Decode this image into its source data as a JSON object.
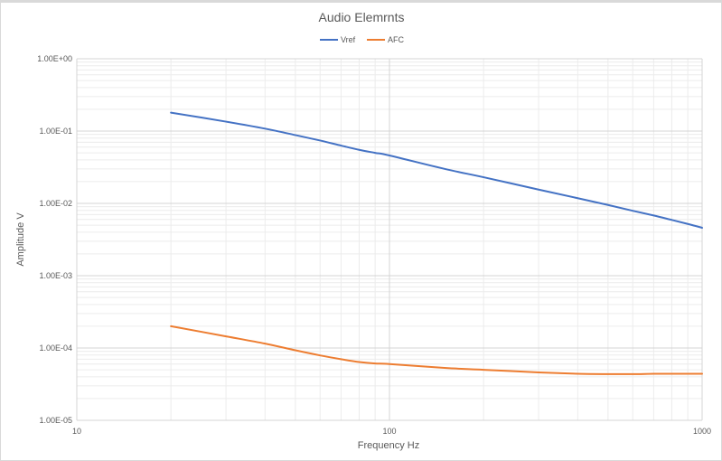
{
  "chart_data": {
    "type": "line",
    "title": "Audio Elemrnts",
    "xlabel": "Frequency Hz",
    "ylabel": "Amplitude V",
    "x_scale": "log",
    "y_scale": "log",
    "xlim": [
      10,
      1000
    ],
    "ylim": [
      1e-05,
      1
    ],
    "x_ticks": [
      10,
      100,
      1000
    ],
    "x_tick_labels": [
      "10",
      "100",
      "1000"
    ],
    "y_ticks": [
      1,
      0.1,
      0.01,
      0.001,
      0.0001,
      1e-05
    ],
    "y_tick_labels": [
      "1.00E+00",
      "1.00E-01",
      "1.00E-02",
      "1.00E-03",
      "1.00E-04",
      "1.00E-05"
    ],
    "grid": true,
    "legend_position": "top",
    "series": [
      {
        "name": "Vref",
        "color": "#4472c4",
        "x": [
          20,
          30,
          40,
          50,
          60,
          70,
          80,
          90,
          100,
          150,
          200,
          300,
          400,
          500,
          600,
          700,
          800,
          900,
          1000
        ],
        "values": [
          0.18,
          0.135,
          0.108,
          0.088,
          0.074,
          0.063,
          0.055,
          0.05,
          0.046,
          0.03,
          0.023,
          0.0155,
          0.0118,
          0.0095,
          0.0079,
          0.0068,
          0.0059,
          0.0052,
          0.0046
        ]
      },
      {
        "name": "AFC",
        "color": "#ed7d31",
        "x": [
          20,
          30,
          40,
          50,
          60,
          70,
          80,
          90,
          100,
          150,
          200,
          300,
          400,
          500,
          600,
          700,
          800,
          900,
          1000
        ],
        "values": [
          0.0002,
          0.000145,
          0.000115,
          9.3e-05,
          7.9e-05,
          7e-05,
          6.4e-05,
          6.1e-05,
          6e-05,
          5.3e-05,
          5e-05,
          4.6e-05,
          4.4e-05,
          4.35e-05,
          4.35e-05,
          4.4e-05,
          4.4e-05,
          4.4e-05,
          4.4e-05
        ]
      }
    ]
  }
}
